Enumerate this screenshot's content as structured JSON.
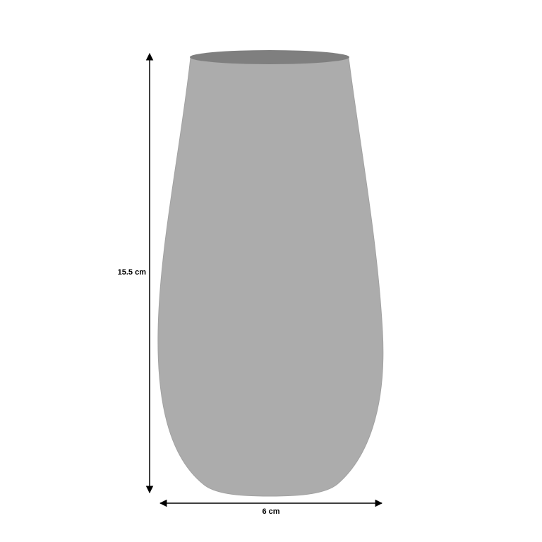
{
  "dimensions": {
    "height_label": "15.5 cm",
    "width_label": "6 cm"
  },
  "colors": {
    "vase_body": "#acacac",
    "vase_opening": "#7f7f7f",
    "vase_outline": "#9a9a9a",
    "dimension_line": "#000000",
    "background": "#ffffff"
  }
}
